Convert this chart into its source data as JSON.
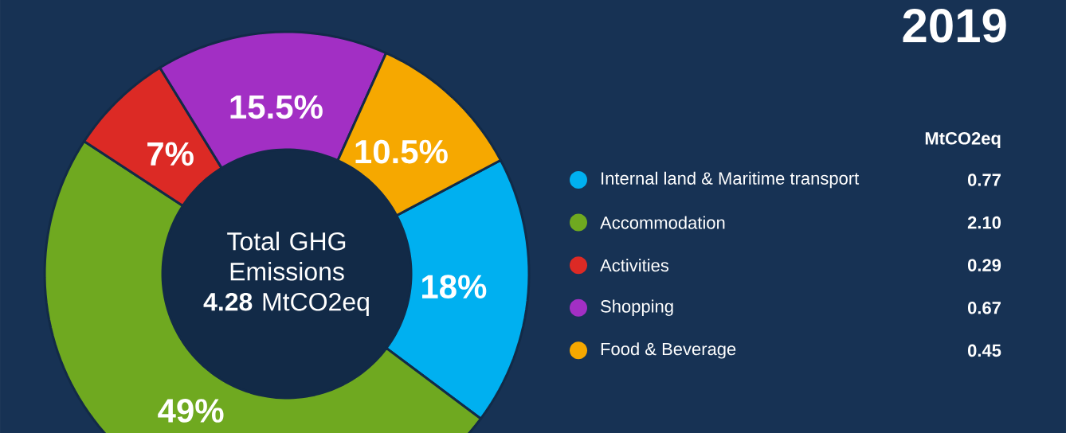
{
  "chart_data": {
    "type": "donut",
    "title": "2019",
    "legend_title": "MtCO2eq",
    "legend": "right",
    "categories": [
      "Internal land & Maritime transport",
      "Accommodation",
      "Activities",
      "Shopping",
      "Food & Beverage"
    ],
    "values": [
      18,
      49,
      7,
      15.5,
      10.5
    ],
    "value_labels": [
      "18%",
      "49%",
      "7%",
      "15.5%",
      "10.5%"
    ],
    "colors": [
      "#00b0f0",
      "#6fa920",
      "#dc2a25",
      "#a22fc4",
      "#f6a800"
    ],
    "annotations": [
      "Total GHG Emissions",
      "**4.28** MtCO2eq",
      "0.77",
      "2.10",
      "0.29",
      "0.67",
      "0.45"
    ]
  }
}
